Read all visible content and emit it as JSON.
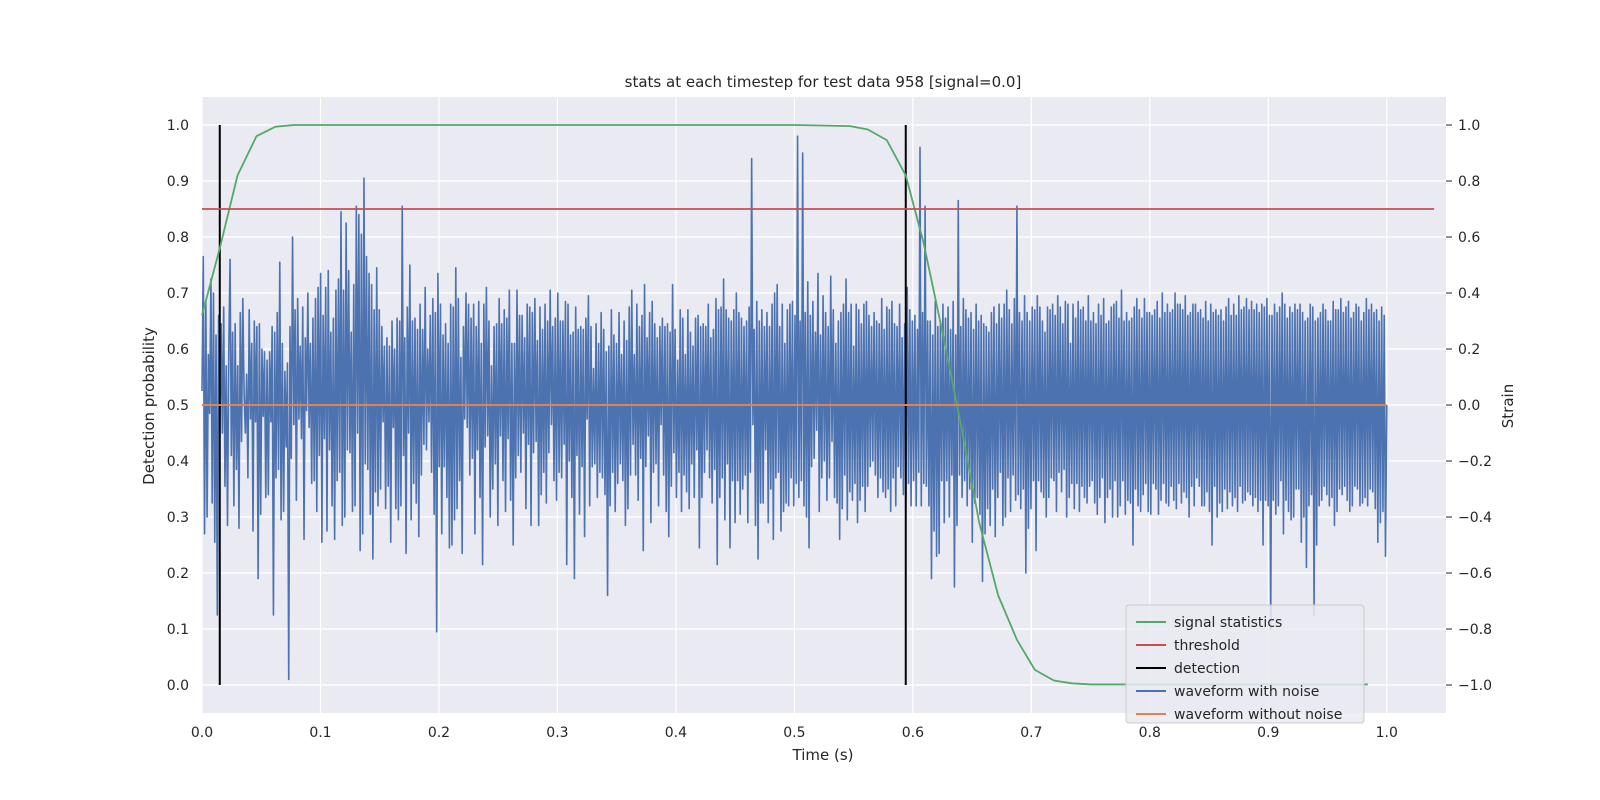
{
  "chart_data": {
    "type": "line",
    "title": "stats at each timestep for test data 958 [signal=0.0]",
    "xlabel": "Time (s)",
    "ylabel": "Detection probability",
    "y2label": "Strain",
    "xlim": [
      0.0,
      1.05
    ],
    "ylim": [
      -0.05,
      1.05
    ],
    "y2lim": [
      -1.1,
      1.1
    ],
    "xticks": [
      "0.0",
      "0.1",
      "0.2",
      "0.3",
      "0.4",
      "0.5",
      "0.6",
      "0.7",
      "0.8",
      "0.9",
      "1.0"
    ],
    "yticks": [
      "0.0",
      "0.1",
      "0.2",
      "0.3",
      "0.4",
      "0.5",
      "0.6",
      "0.7",
      "0.8",
      "0.9",
      "1.0"
    ],
    "y2ticks": [
      "−1.0",
      "−0.8",
      "−0.6",
      "−0.4",
      "−0.2",
      "0.0",
      "0.2",
      "0.4",
      "0.6",
      "0.8",
      "1.0"
    ],
    "grid": true,
    "legend_position": "bottom-right",
    "colors": {
      "background": "#eaeaf2",
      "grid": "#ffffff",
      "signal": "#55a868",
      "threshold": "#c44e52",
      "detection": "#000000",
      "noisy": "#4c72b0",
      "clean": "#dd8452"
    },
    "series": [
      {
        "name": "signal statistics",
        "axis": "left",
        "x": [
          0.0,
          0.015,
          0.03,
          0.046,
          0.062,
          0.078,
          0.1,
          0.2,
          0.3,
          0.4,
          0.5,
          0.547,
          0.562,
          0.578,
          0.594,
          0.609,
          0.625,
          0.641,
          0.656,
          0.672,
          0.688,
          0.703,
          0.719,
          0.734,
          0.75,
          0.8,
          0.9,
          0.984
        ],
        "values": [
          0.66,
          0.78,
          0.91,
          0.98,
          0.997,
          1.0,
          1.0,
          1.0,
          1.0,
          1.0,
          1.0,
          0.998,
          0.992,
          0.973,
          0.91,
          0.79,
          0.63,
          0.46,
          0.29,
          0.16,
          0.08,
          0.027,
          0.008,
          0.003,
          0.001,
          0.001,
          0.001,
          0.001
        ]
      },
      {
        "name": "threshold",
        "axis": "left",
        "x": [
          0.0,
          1.04
        ],
        "values": [
          0.85,
          0.85
        ]
      },
      {
        "name": "detection",
        "axis": "left",
        "segments": [
          {
            "x": 0.015,
            "y": [
              0.0,
              1.0
            ]
          },
          {
            "x": 0.594,
            "y": [
              0.0,
              1.0
            ]
          }
        ]
      },
      {
        "name": "waveform with noise",
        "axis": "right",
        "x_range": [
          0.0,
          1.0
        ],
        "values": [
          0.05,
          0.53,
          -0.46,
          0.37,
          -0.4,
          0.18,
          -0.03,
          0.45,
          -0.35,
          0.4,
          -0.49,
          0.25,
          -0.75,
          0.32,
          -0.11,
          0.29,
          -0.1,
          0.35,
          -0.29,
          0.14,
          -0.43,
          0.19,
          0.52,
          -0.18,
          0.26,
          -0.36,
          0.29,
          -0.23,
          0.14,
          -0.44,
          0.33,
          -0.13,
          0.38,
          0.04,
          -0.1,
          0.11,
          -0.26,
          0.34,
          -0.05,
          0.22,
          -0.45,
          0.3,
          -0.06,
          0.28,
          -0.62,
          0.29,
          -0.39,
          0.2,
          -0.04,
          0.19,
          -0.33,
          0.16,
          -0.32,
          0.19,
          -0.06,
          0.28,
          -0.75,
          0.26,
          -0.26,
          0.33,
          -0.23,
          0.51,
          -0.41,
          0.22,
          -0.38,
          0.12,
          -0.15,
          0.15,
          -0.98,
          0.28,
          -0.19,
          0.6,
          -0.07,
          0.34,
          -0.34,
          0.38,
          -0.05,
          0.21,
          -0.12,
          0.35,
          -0.48,
          0.24,
          -0.02,
          0.4,
          -0.08,
          0.22,
          -0.28,
          0.31,
          -0.27,
          0.38,
          -0.38,
          0.42,
          -0.18,
          0.47,
          -0.49,
          0.32,
          -0.12,
          0.42,
          -0.45,
          0.48,
          -0.16,
          0.26,
          -0.36,
          0.31,
          -0.48,
          0.41,
          -0.27,
          0.45,
          -0.24,
          0.69,
          -0.43,
          0.41,
          -0.4,
          0.65,
          -0.16,
          0.48,
          -0.17,
          0.26,
          -0.38,
          0.43,
          -0.36,
          0.71,
          -0.1,
          0.68,
          -0.52,
          0.61,
          -0.46,
          0.81,
          -0.21,
          0.53,
          -0.23,
          0.47,
          -0.39,
          0.43,
          -0.55,
          0.34,
          -0.31,
          0.49,
          -0.36,
          0.34,
          -0.3,
          0.28,
          -0.06,
          0.21,
          -0.37,
          0.24,
          -0.29,
          0.21,
          -0.49,
          0.3,
          -0.08,
          0.2,
          -0.37,
          0.31,
          -0.41,
          0.3,
          -0.36,
          0.71,
          -0.18,
          0.24,
          -0.53,
          0.35,
          -0.1,
          0.5,
          -0.41,
          0.3,
          -0.28,
          0.31,
          -0.35,
          0.27,
          -0.47,
          0.36,
          -0.25,
          0.27,
          -0.14,
          0.42,
          -0.16,
          0.2,
          -0.06,
          0.32,
          -0.24,
          0.38,
          -0.39,
          0.33,
          -0.81,
          0.47,
          -0.22,
          0.36,
          -0.46,
          0.25,
          -0.22,
          0.29,
          -0.33,
          0.22,
          -0.51,
          0.36,
          -0.5,
          0.35,
          -0.41,
          0.49,
          -0.37,
          0.38,
          -0.27,
          0.17,
          -0.53,
          0.28,
          -0.05,
          0.4,
          -0.08,
          0.36,
          -0.25,
          0.31,
          -0.19,
          0.36,
          -0.46,
          0.28,
          -0.16,
          0.37,
          -0.33,
          0.22,
          -0.57,
          0.36,
          -0.15,
          0.42,
          -0.11,
          0.3,
          -0.4,
          0.14,
          -0.3,
          0.28,
          -0.21,
          0.29,
          -0.43,
          0.38,
          -0.11,
          0.29,
          -0.27,
          0.34,
          -0.38,
          0.31,
          -0.12,
          0.41,
          -0.34,
          0.22,
          -0.5,
          0.22,
          -0.26,
          0.41,
          -0.18,
          0.32,
          -0.24,
          0.32,
          -0.1,
          0.24,
          -0.37,
          0.36,
          -0.14,
          0.35,
          -0.43,
          0.33,
          -0.17,
          0.38,
          -0.13,
          0.23,
          -0.43,
          0.35,
          -0.32,
          0.27,
          -0.24,
          0.36,
          -0.35,
          0.3,
          -0.17,
          0.41,
          -0.07,
          0.28,
          -0.27,
          0.31,
          -0.34,
          0.4,
          -0.24,
          0.3,
          -0.26,
          0.3,
          -0.14,
          0.37,
          -0.57,
          0.36,
          -0.2,
          0.25,
          -0.33,
          0.26,
          -0.62,
          0.35,
          -0.18,
          0.27,
          -0.39,
          0.28,
          -0.22,
          0.27,
          -0.47,
          0.31,
          -0.05,
          0.39,
          -0.36,
          0.28,
          -0.22,
          0.13,
          -0.21,
          0.29,
          -0.33,
          0.22,
          -0.24,
          0.33,
          -0.26,
          0.27,
          -0.32,
          0.19,
          -0.68,
          0.21,
          -0.36,
          0.34,
          -0.24,
          0.25,
          -0.38,
          0.22,
          -0.28,
          0.33,
          -0.21,
          0.18,
          -0.27,
          0.3,
          -0.43,
          0.23,
          -0.37,
          0.35,
          -0.25,
          0.41,
          -0.14,
          0.18,
          -0.25,
          0.36,
          -0.34,
          0.28,
          -0.19,
          0.32,
          -0.52,
          0.43,
          -0.22,
          0.24,
          -0.11,
          0.33,
          -0.42,
          0.37,
          -0.24,
          0.29,
          -0.21,
          0.24,
          -0.36,
          0.28,
          -0.07,
          0.31,
          -0.25,
          0.28,
          -0.38,
          0.29,
          -0.47,
          0.26,
          -0.29,
          0.43,
          -0.17,
          0.27,
          -0.33,
          0.16,
          -0.24,
          0.34,
          -0.38,
          0.31,
          -0.25,
          0.18,
          -0.31,
          0.34,
          -0.37,
          0.26,
          -0.21,
          0.21,
          -0.33,
          0.31,
          -0.16,
          0.32,
          -0.51,
          0.28,
          -0.33,
          0.29,
          -0.24,
          0.28,
          -0.16,
          0.36,
          -0.26,
          0.24,
          -0.35,
          0.27,
          -0.23,
          0.38,
          -0.57,
          0.34,
          -0.33,
          0.35,
          -0.26,
          0.45,
          -0.41,
          0.34,
          -0.21,
          0.31,
          -0.51,
          0.3,
          -0.27,
          0.34,
          -0.42,
          0.4,
          -0.27,
          0.33,
          -0.39,
          0.31,
          -0.3,
          0.28,
          -0.25,
          0.3,
          -0.42,
          0.35,
          -0.24,
          0.88,
          -0.07,
          0.27,
          -0.43,
          0.37,
          -0.55,
          0.3,
          -0.35,
          0.34,
          -0.35,
          0.28,
          -0.16,
          0.33,
          -0.42,
          0.28,
          -0.3,
          0.36,
          -0.48,
          0.4,
          -0.26,
          0.43,
          -0.24,
          0.28,
          -0.45,
          0.36,
          -0.38,
          0.22,
          -0.35,
          0.34,
          -0.36,
          0.36,
          -0.26,
          0.37,
          -0.36,
          0.32,
          -0.28,
          0.96,
          -0.33,
          0.3,
          -0.27,
          0.9,
          -0.36,
          0.33,
          -0.4,
          0.44,
          -0.51,
          0.32,
          -0.22,
          0.37,
          -0.19,
          0.26,
          -0.09,
          0.47,
          -0.38,
          0.25,
          -0.26,
          0.39,
          -0.2,
          0.33,
          -0.34,
          0.28,
          -0.26,
          0.46,
          -0.13,
          0.34,
          -0.33,
          0.22,
          -0.35,
          0.3,
          -0.48,
          0.33,
          -0.37,
          0.36,
          -0.25,
          0.45,
          -0.41,
          0.33,
          -0.31,
          0.36,
          -0.34,
          0.21,
          -0.28,
          0.36,
          -0.42,
          0.34,
          -0.34,
          0.29,
          -0.29,
          0.36,
          -0.38,
          0.37,
          -0.29,
          0.32,
          -0.22,
          0.28,
          -0.2,
          0.33,
          -0.25,
          0.3,
          -0.33,
          0.29,
          -0.26,
          0.38,
          -0.31,
          0.27,
          -0.33,
          0.35,
          -0.3,
          0.34,
          -0.38,
          0.37,
          -0.26,
          0.29,
          -0.36,
          0.28,
          -0.22,
          0.36,
          -0.26,
          0.24,
          -0.32,
          0.29,
          -0.33,
          0.42,
          -0.28,
          0.34,
          -0.36,
          0.3,
          -0.27,
          0.32,
          -0.36,
          0.27,
          -0.24,
          0.92,
          -0.36,
          0.33,
          -0.28,
          0.71,
          -0.29,
          0.3,
          -0.36,
          0.3,
          -0.62,
          0.25,
          -0.45,
          0.37,
          -0.54,
          0.28,
          -0.53,
          0.3,
          -0.27,
          0.36,
          -0.42,
          0.31,
          -0.27,
          0.35,
          -0.4,
          0.27,
          -0.25,
          0.37,
          -0.65,
          0.25,
          -0.43,
          0.73,
          -0.25,
          0.28,
          -0.33,
          0.38,
          -0.27,
          0.34,
          -0.36,
          0.31,
          -0.3,
          0.33,
          -0.49,
          0.27,
          -0.35,
          0.36,
          -0.33,
          0.3,
          -0.39,
          0.32,
          -0.63,
          0.29,
          -0.46,
          0.28,
          -0.37,
          0.26,
          -0.43,
          0.33,
          -0.3,
          0.35,
          -0.47,
          0.29,
          -0.33,
          0.36,
          -0.24,
          0.31,
          -0.43,
          0.36,
          -0.4,
          0.41,
          -0.26,
          0.34,
          -0.38,
          0.29,
          -0.25,
          0.38,
          -0.34,
          0.71,
          -0.32,
          0.33,
          -0.37,
          0.3,
          -0.3,
          0.39,
          -0.6,
          0.33,
          -0.44,
          0.3,
          -0.37,
          0.35,
          -0.27,
          0.34,
          -0.52,
          0.39,
          -0.27,
          0.35,
          -0.31,
          0.3,
          -0.33,
          0.26,
          -0.4,
          0.35,
          -0.33,
          0.34,
          -0.26,
          0.36,
          -0.27,
          0.32,
          -0.38,
          0.39,
          -0.24,
          0.35,
          -0.31,
          0.29,
          -0.23,
          0.37,
          -0.4,
          0.36,
          -0.33,
          0.22,
          -0.28,
          0.36,
          -0.37,
          0.31,
          -0.28,
          0.37,
          -0.38,
          0.34,
          -0.29,
          0.35,
          -0.33,
          0.3,
          -0.35,
          0.39,
          -0.29,
          0.3,
          -0.27,
          0.33,
          -0.35,
          0.29,
          -0.39,
          0.36,
          -0.33,
          0.32,
          -0.26,
          0.38,
          -0.42,
          0.29,
          -0.33,
          0.3,
          -0.3,
          0.35,
          -0.4,
          0.36,
          -0.27,
          0.37,
          -0.4,
          0.31,
          -0.36,
          0.41,
          -0.27,
          0.3,
          -0.39,
          0.33,
          -0.34,
          0.3,
          -0.35,
          0.31,
          -0.5,
          0.35,
          -0.3,
          0.38,
          -0.36,
          0.34,
          -0.38,
          0.31,
          -0.32,
          0.38,
          -0.28,
          0.33,
          -0.38,
          0.33,
          -0.39,
          0.32,
          -0.28,
          0.34,
          -0.3,
          0.37,
          -0.39,
          0.31,
          -0.34,
          0.4,
          -0.28,
          0.33,
          -0.35,
          0.36,
          -0.36,
          0.33,
          -0.29,
          0.34,
          -0.34,
          0.4,
          -0.37,
          0.36,
          -0.28,
          0.36,
          -0.35,
          0.34,
          -0.31,
          0.39,
          -0.33,
          0.32,
          -0.4,
          0.33,
          -0.29,
          0.36,
          -0.36,
          0.36,
          -0.26,
          0.33,
          -0.29,
          0.34,
          -0.36,
          0.31,
          -0.36,
          0.37,
          -0.31,
          0.3,
          -0.38,
          0.36,
          -0.5,
          0.33,
          -0.29,
          0.34,
          -0.4,
          0.32,
          -0.35,
          0.34,
          -0.38,
          0.3,
          -0.3,
          0.35,
          -0.37,
          0.38,
          -0.31,
          0.32,
          -0.36,
          0.36,
          -0.33,
          0.32,
          -0.38,
          0.39,
          -0.29,
          0.34,
          -0.35,
          0.35,
          -0.34,
          0.38,
          -0.31,
          0.34,
          -0.32,
          0.37,
          -0.36,
          0.34,
          -0.33,
          0.36,
          -0.38,
          0.33,
          -0.34,
          0.36,
          -0.5,
          0.35,
          -0.34,
          0.38,
          -0.36,
          0.32,
          -0.8,
          0.32,
          -0.34,
          0.36,
          -0.39,
          0.33,
          -0.36,
          0.35,
          -0.27,
          0.4,
          -0.46,
          0.36,
          -0.34,
          0.31,
          -0.38,
          0.35,
          -0.41,
          0.33,
          -0.4,
          0.36,
          -0.3,
          0.34,
          -0.3,
          0.36,
          -0.49,
          0.33,
          -0.4,
          0.3,
          -0.58,
          0.31,
          -0.36,
          0.36,
          -0.32,
          0.35,
          -0.75,
          0.3,
          -0.5,
          0.31,
          -0.36,
          0.33,
          -0.34,
          0.36,
          -0.29,
          0.34,
          -0.32,
          0.3,
          -0.36,
          0.3,
          -0.33,
          0.37,
          -0.43,
          0.34,
          -0.38,
          0.34,
          -0.3,
          0.38,
          -0.32,
          0.33,
          -0.29,
          0.35,
          -0.34,
          0.37,
          -0.38,
          0.31,
          -0.36,
          0.33,
          -0.29,
          0.36,
          -0.3,
          0.35,
          -0.36,
          0.3,
          -0.35,
          0.33,
          -0.33,
          0.38,
          -0.36,
          0.34,
          -0.3,
          0.36,
          -0.31,
          0.33,
          -0.37,
          0.34,
          -0.49,
          0.3,
          -0.42,
          0.35,
          -0.38,
          0.32,
          -0.54,
          0.0
        ]
      },
      {
        "name": "waveform without noise",
        "axis": "right",
        "x": [
          0.0,
          1.0
        ],
        "values": [
          0.0,
          0.0
        ]
      }
    ]
  }
}
